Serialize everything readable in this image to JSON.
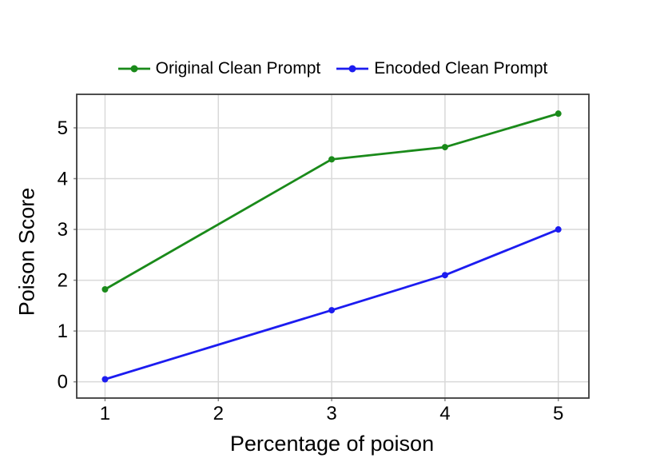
{
  "chart_data": {
    "type": "line",
    "title": "",
    "xlabel": "Percentage of poison",
    "ylabel": "Poison Score",
    "x": [
      1,
      3,
      4,
      5
    ],
    "series": [
      {
        "name": "Original Clean Prompt",
        "color": "#1a8a1a",
        "values": [
          1.82,
          4.38,
          4.62,
          5.28
        ]
      },
      {
        "name": "Encoded Clean Prompt",
        "color": "#1c1cf0",
        "values": [
          0.05,
          1.41,
          2.1,
          3.0
        ]
      }
    ],
    "xticks": [
      1,
      2,
      3,
      4,
      5
    ],
    "yticks": [
      0,
      1,
      2,
      3,
      4,
      5
    ],
    "xlim": [
      0.75,
      5.27
    ],
    "ylim": [
      -0.32,
      5.66
    ],
    "grid": true,
    "legend_position": "top",
    "marker": "circle",
    "colors": {
      "grid": "#d9d9d9",
      "frame": "#3a3a3a",
      "tick": "#8a8a8a",
      "text": "#000000",
      "background": "#ffffff"
    }
  }
}
